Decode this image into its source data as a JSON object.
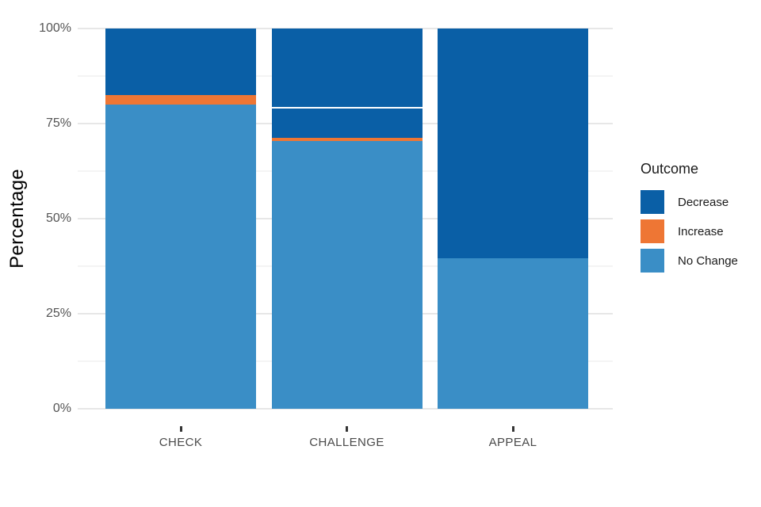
{
  "chart_data": {
    "type": "bar",
    "stacked": true,
    "orientation": "vertical",
    "title": "",
    "xlabel": "",
    "ylabel": "Percentage",
    "ylim": [
      0,
      100
    ],
    "ytick_labels": [
      "0%",
      "25%",
      "50%",
      "75%",
      "100%"
    ],
    "minor_gridlines_pct": [
      12.5,
      37.5,
      62.5,
      87.5
    ],
    "categories": [
      "CHECK",
      "CHALLENGE",
      "APPEAL"
    ],
    "series": [
      {
        "name": "Decrease",
        "color": "#0a5fa6",
        "values": [
          17.5,
          28.8,
          60.5
        ]
      },
      {
        "name": "Increase",
        "color": "#ee7634",
        "values": [
          2.5,
          0.7,
          0
        ]
      },
      {
        "name": "No Change",
        "color": "#3a8ec6",
        "values": [
          80,
          70.5,
          39.5
        ]
      }
    ],
    "separators": [
      {
        "category": "CHALLENGE",
        "at_pct": 79.2,
        "color": "#ffffff"
      }
    ],
    "legend": {
      "title": "Outcome",
      "position": "right"
    }
  }
}
